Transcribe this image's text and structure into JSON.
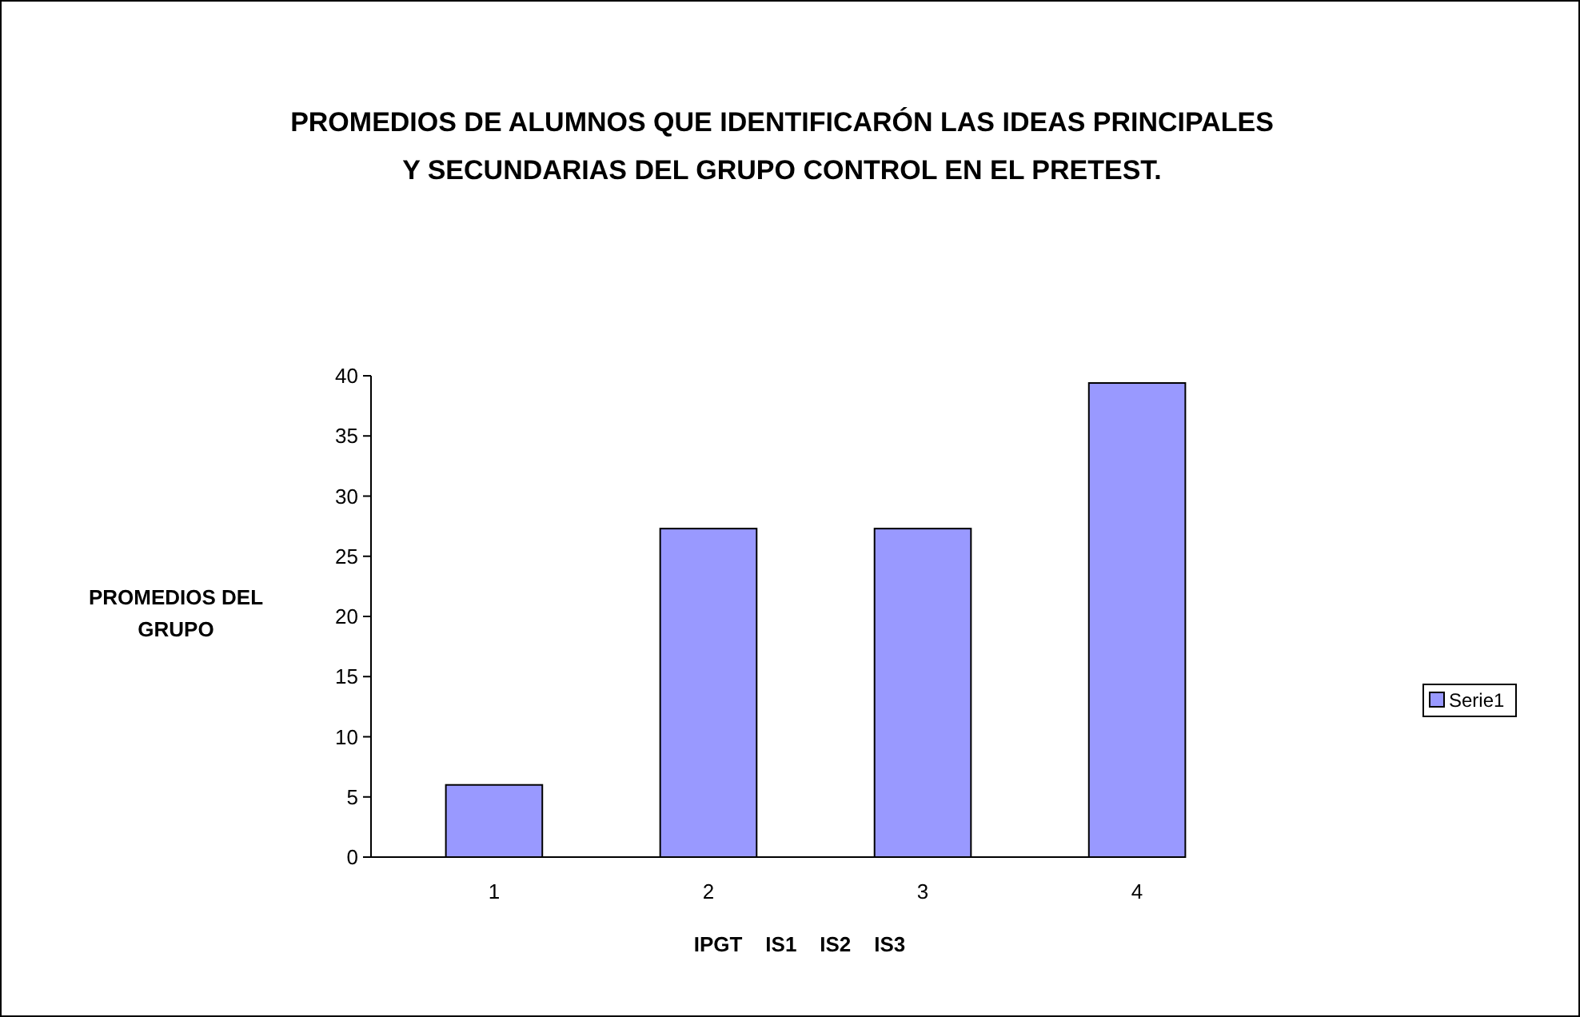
{
  "chart_data": {
    "type": "bar",
    "title": "PROMEDIOS DE ALUMNOS QUE IDENTIFICARÓN LAS IDEAS PRINCIPALES Y SECUNDARIAS DEL GRUPO CONTROL EN EL PRETEST.",
    "xlabel": "IPGT    IS1    IS2    IS3",
    "ylabel": "PROMEDIOS DEL GRUPO",
    "categories": [
      "1",
      "2",
      "3",
      "4"
    ],
    "series": [
      {
        "name": "Serie1",
        "color": "#9999ff",
        "values": [
          6,
          27.3,
          27.3,
          39.4
        ]
      }
    ],
    "ylim": [
      0,
      40
    ],
    "yticks": [
      0,
      5,
      10,
      15,
      20,
      25,
      30,
      35,
      40
    ],
    "grid": false,
    "legend": "right"
  }
}
